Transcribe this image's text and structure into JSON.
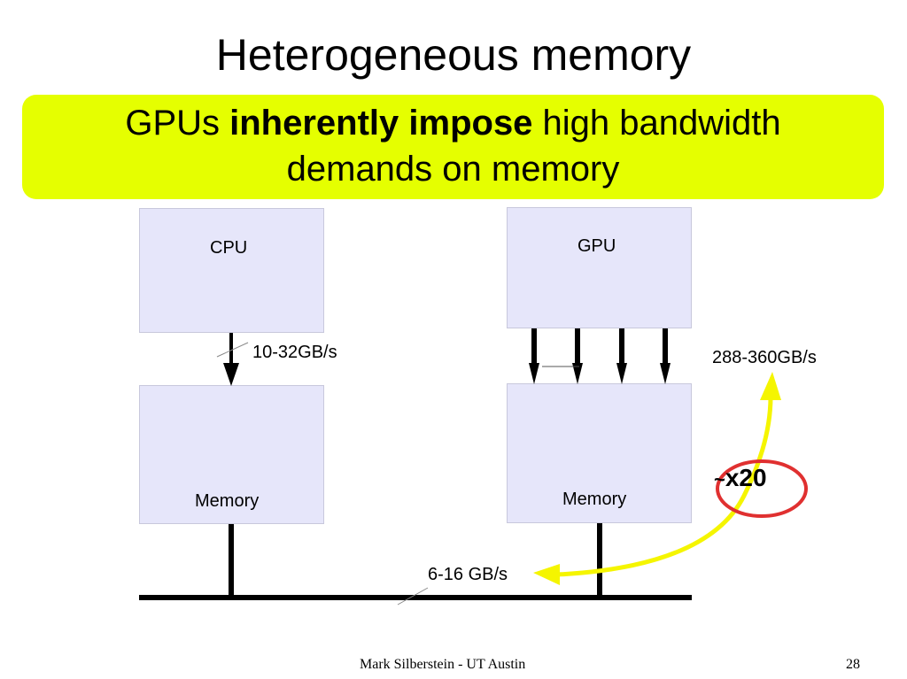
{
  "slide": {
    "title": "Heterogeneous memory",
    "banner": {
      "prefix": "GPUs ",
      "emphasis": "inherently impose",
      "suffix": " high bandwidth",
      "line2": "demands on memory"
    },
    "cpu_label": "CPU",
    "gpu_label": "GPU",
    "cpu_memory_label": "Memory",
    "gpu_memory_label": "Memory",
    "cpu_bandwidth": "10-32GB/s",
    "gpu_bandwidth": "288-360GB/s",
    "bus_bandwidth": "6-16 GB/s",
    "ratio_tilde": "~",
    "ratio_value": "x20",
    "footer": "Mark Silberstein - UT Austin",
    "page_number": "28"
  },
  "colors": {
    "banner": "#e5ff00",
    "box_fill": "#e6e6fa",
    "highlight_arrow": "#f5f500",
    "ratio_circle": "#e03030"
  }
}
